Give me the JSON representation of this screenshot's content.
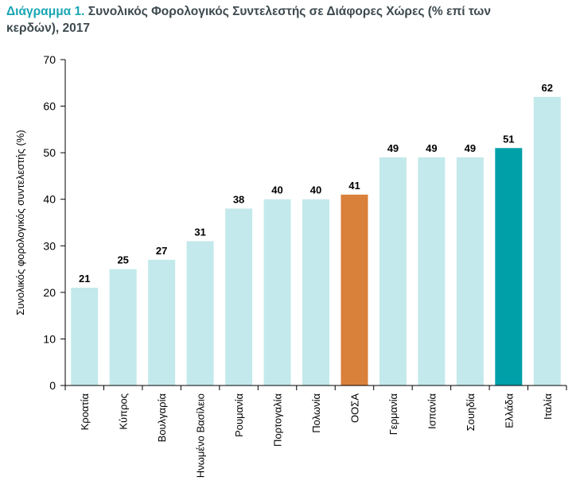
{
  "chart_data": {
    "type": "bar",
    "title_prefix": "Διάγραμμα 1.",
    "title": "Συνολικός Φορολογικός Συντελεστής σε Διάφορες Χώρες (% επί των κερδών), 2017",
    "ylabel": "Συνολικός φορολογικός συντελεστής (%)",
    "xlabel": "",
    "ylim": [
      0,
      70
    ],
    "yticks": [
      0,
      10,
      20,
      30,
      40,
      50,
      60,
      70
    ],
    "grid": false,
    "categories": [
      "Κροατία",
      "Κύπρος",
      "Βουλγαρία",
      "Ηνωμένο Βασίλειο",
      "Ρουμανία",
      "Πορτογαλία",
      "Πολωνία",
      "ΟΟΣΑ",
      "Γερμανία",
      "Ισπανία",
      "Σουηδία",
      "Ελλάδα",
      "Ιταλία"
    ],
    "values": [
      21,
      25,
      27,
      31,
      38,
      40,
      40,
      41,
      49,
      49,
      49,
      51,
      62
    ],
    "data_labels": [
      "21",
      "25",
      "27",
      "31",
      "38",
      "40",
      "40",
      "41",
      "49",
      "49",
      "49",
      "51",
      "62"
    ],
    "colors": {
      "default": "#c3e9ec",
      "highlight": {
        "ΟΟΣΑ": "#d9803a",
        "Ελλάδα": "#00a0a8"
      },
      "axis": "#000000",
      "title": "#3d4a4f",
      "title_prefix": "#1aa6b4"
    }
  }
}
